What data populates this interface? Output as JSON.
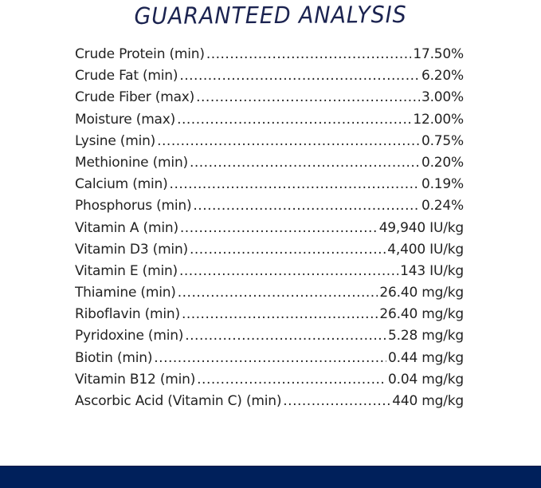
{
  "title": "GUARANTEED ANALYSIS",
  "colors": {
    "title": "#1b2350",
    "text": "#222222",
    "footer_band": "#00205b",
    "background": "#ffffff"
  },
  "analysis": [
    {
      "label": "Crude Protein (min)",
      "value": "17.50%"
    },
    {
      "label": "Crude Fat (min)",
      "value": "6.20%"
    },
    {
      "label": "Crude Fiber (max)",
      "value": "3.00%"
    },
    {
      "label": "Moisture (max)",
      "value": "12.00%"
    },
    {
      "label": "Lysine (min)",
      "value": "0.75%"
    },
    {
      "label": "Methionine (min)",
      "value": "0.20%"
    },
    {
      "label": "Calcium (min)",
      "value": "0.19%"
    },
    {
      "label": "Phosphorus (min)",
      "value": "0.24%"
    },
    {
      "label": "Vitamin A (min)",
      "value": "49,940 IU/kg"
    },
    {
      "label": "Vitamin D3 (min)",
      "value": "4,400 IU/kg"
    },
    {
      "label": "Vitamin E (min)",
      "value": "143 IU/kg"
    },
    {
      "label": "Thiamine (min)",
      "value": "26.40 mg/kg"
    },
    {
      "label": "Riboflavin (min)",
      "value": "26.40 mg/kg"
    },
    {
      "label": "Pyridoxine (min)",
      "value": "5.28 mg/kg"
    },
    {
      "label": "Biotin (min)",
      "value": "0.44 mg/kg"
    },
    {
      "label": "Vitamin B12 (min)",
      "value": "0.04 mg/kg"
    },
    {
      "label": "Ascorbic Acid (Vitamin C) (min)",
      "value": "440 mg/kg"
    }
  ]
}
